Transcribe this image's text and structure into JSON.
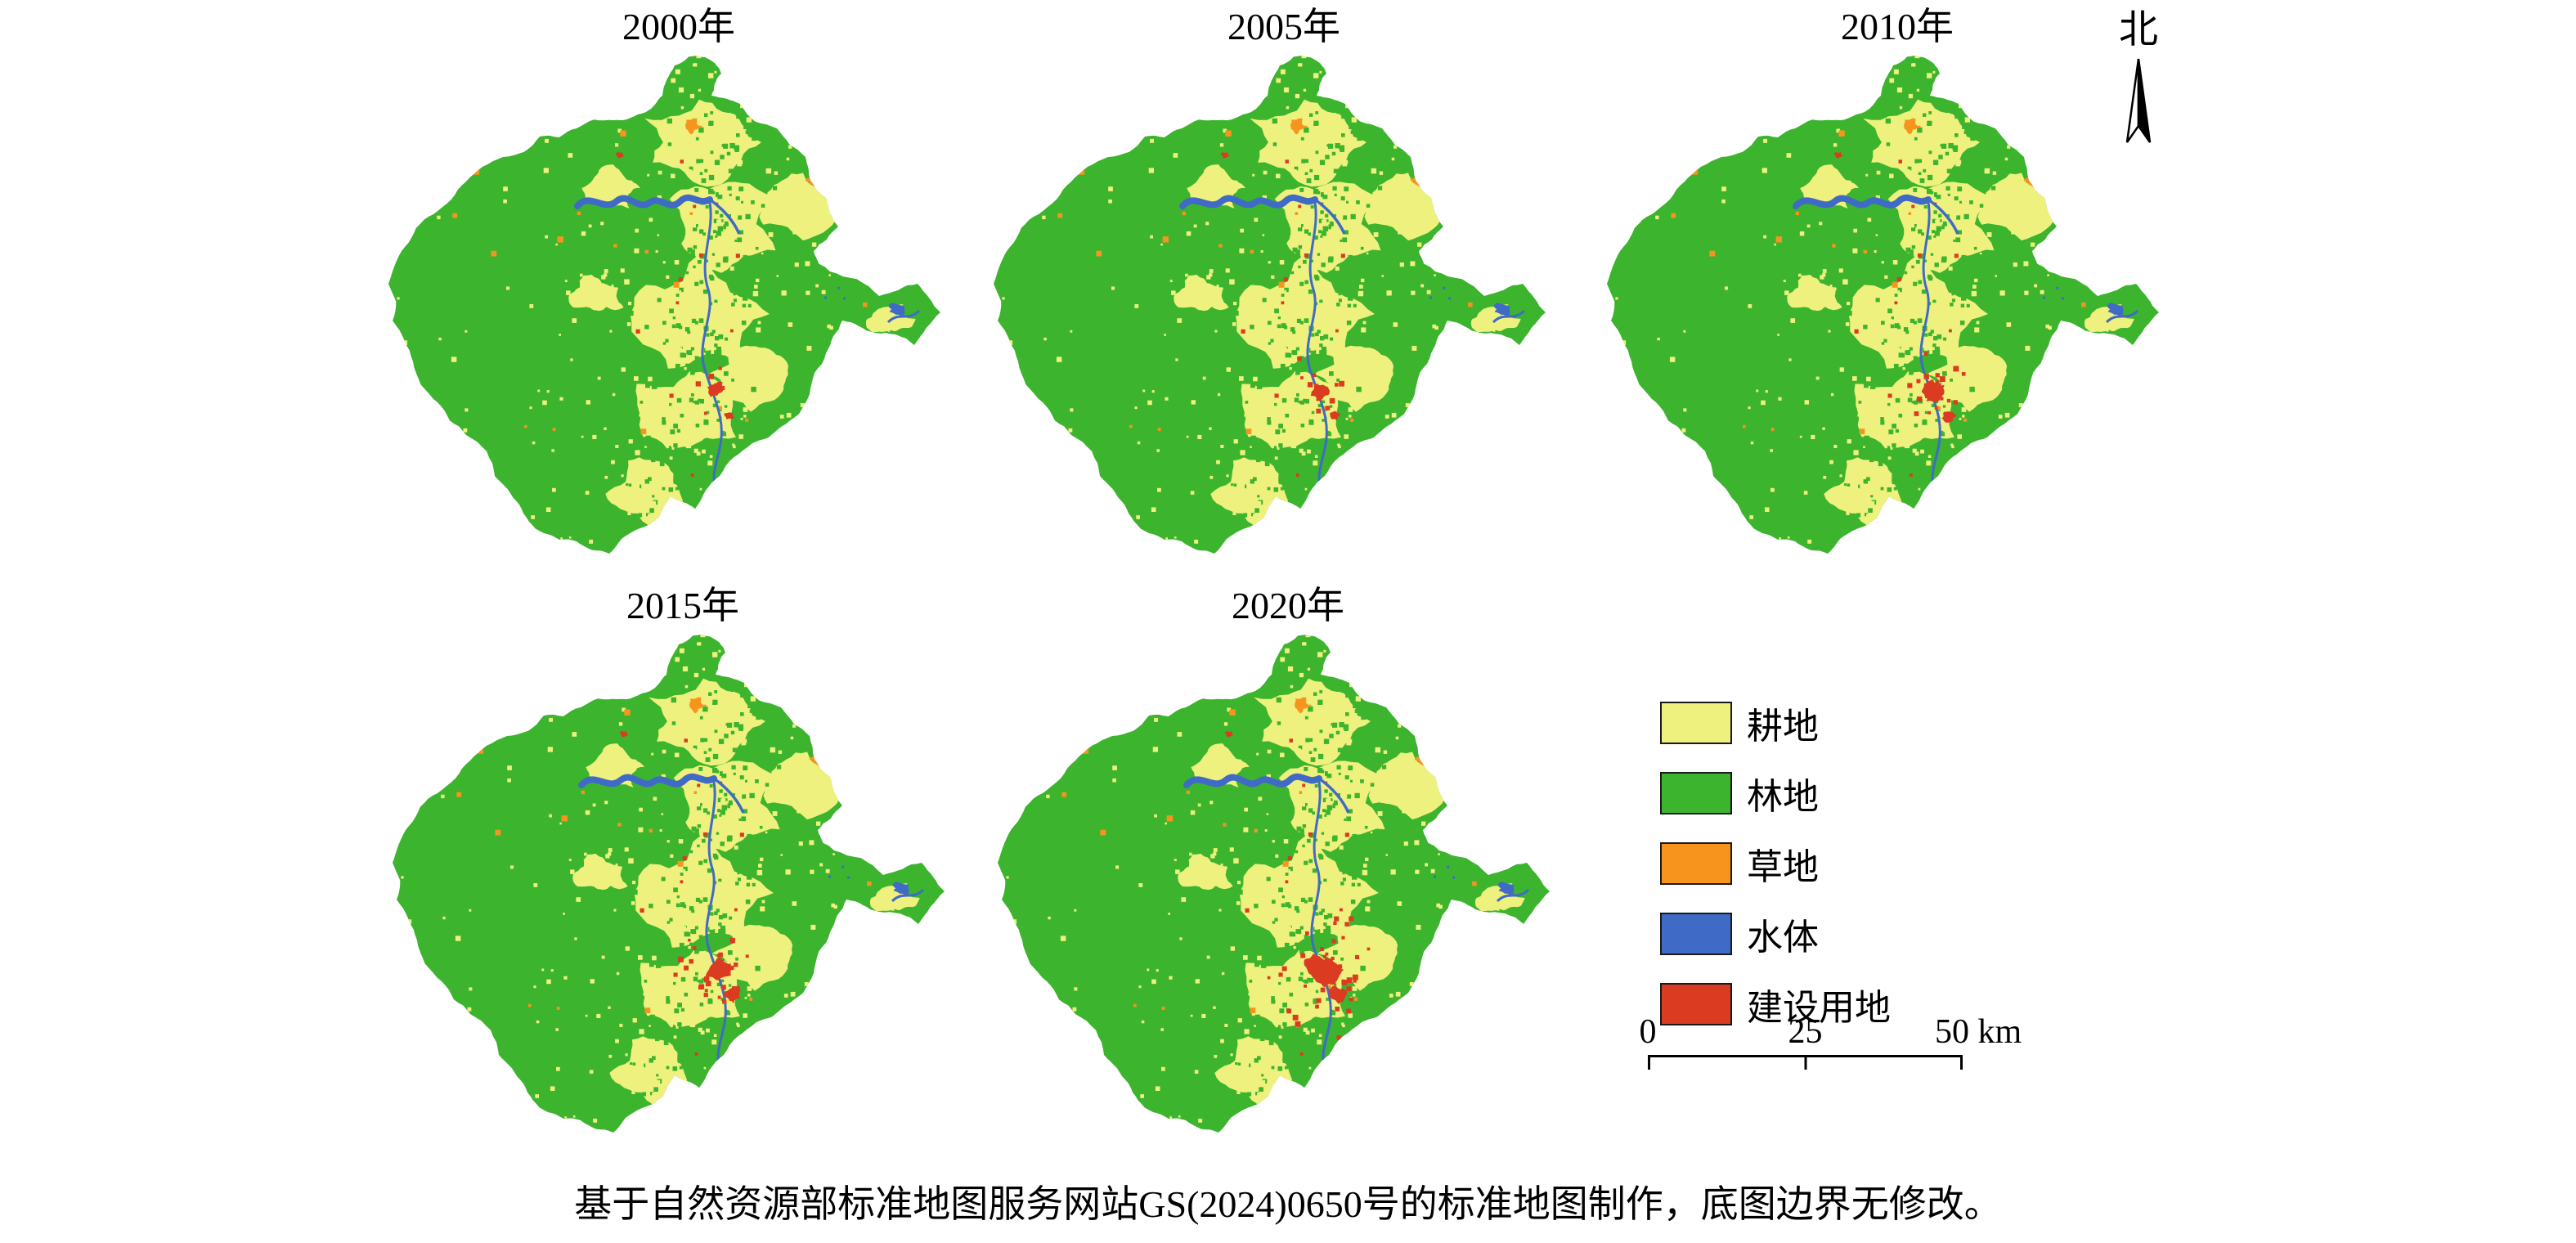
{
  "figure": {
    "north_label": "北",
    "caption": "基于自然资源部标准地图服务网站GS(2024)0650号的标准地图制作，底图边界无修改。"
  },
  "maps": [
    {
      "year": "2000年"
    },
    {
      "year": "2005年"
    },
    {
      "year": "2010年"
    },
    {
      "year": "2015年"
    },
    {
      "year": "2020年"
    }
  ],
  "legend": {
    "items": [
      {
        "label": "耕地",
        "color": "#eef17d"
      },
      {
        "label": "林地",
        "color": "#3cb42e"
      },
      {
        "label": "草地",
        "color": "#f7941e"
      },
      {
        "label": "水体",
        "color": "#3f6bc6"
      },
      {
        "label": "建设用地",
        "color": "#db3b21"
      }
    ]
  },
  "scalebar": {
    "labels": [
      "0",
      "25",
      "50 km"
    ]
  }
}
